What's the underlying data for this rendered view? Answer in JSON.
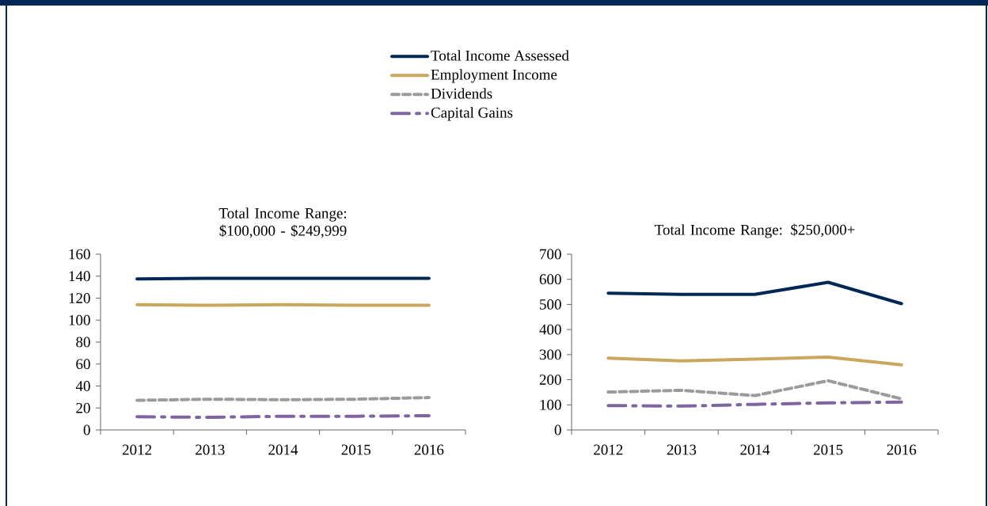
{
  "chart_data": [
    {
      "type": "line",
      "title": "Total Income Range: $100,000 - $249,999",
      "categories": [
        "2012",
        "2013",
        "2014",
        "2015",
        "2016"
      ],
      "ylim": [
        0,
        160
      ],
      "yticks": [
        0,
        20,
        40,
        60,
        80,
        100,
        120,
        140,
        160
      ],
      "legend": "top",
      "series": [
        {
          "name": "Total Income Assessed",
          "color": "#002855",
          "line_style": "solid",
          "values": [
            137.5,
            138,
            138,
            138,
            138
          ]
        },
        {
          "name": "Employment Income",
          "color": "#c9a75c",
          "line_style": "solid",
          "values": [
            114,
            113.5,
            114,
            113.5,
            113.5
          ]
        },
        {
          "name": "Dividends",
          "color": "#9b9b9b",
          "line_style": "dashed",
          "values": [
            27,
            28,
            27.5,
            28,
            29.5
          ]
        },
        {
          "name": "Capital Gains",
          "color": "#8064a2",
          "line_style": "dashdot",
          "values": [
            12,
            11.5,
            12.5,
            12.5,
            13
          ]
        }
      ]
    },
    {
      "type": "line",
      "title": "Total Income Range: $250,000+",
      "categories": [
        "2012",
        "2013",
        "2014",
        "2015",
        "2016"
      ],
      "ylim": [
        0,
        700
      ],
      "yticks": [
        0,
        100,
        200,
        300,
        400,
        500,
        600,
        700
      ],
      "series": [
        {
          "color": "#002855",
          "line_style": "solid",
          "values": [
            545,
            540,
            540,
            588,
            503
          ]
        },
        {
          "color": "#c9a75c",
          "line_style": "solid",
          "values": [
            286,
            275,
            282,
            290,
            259
          ]
        },
        {
          "color": "#9b9b9b",
          "line_style": "dashed",
          "values": [
            151,
            158,
            137,
            196,
            124
          ]
        },
        {
          "color": "#8064a2",
          "line_style": "dashdot",
          "values": [
            97,
            95,
            102,
            108,
            111
          ]
        }
      ]
    }
  ]
}
